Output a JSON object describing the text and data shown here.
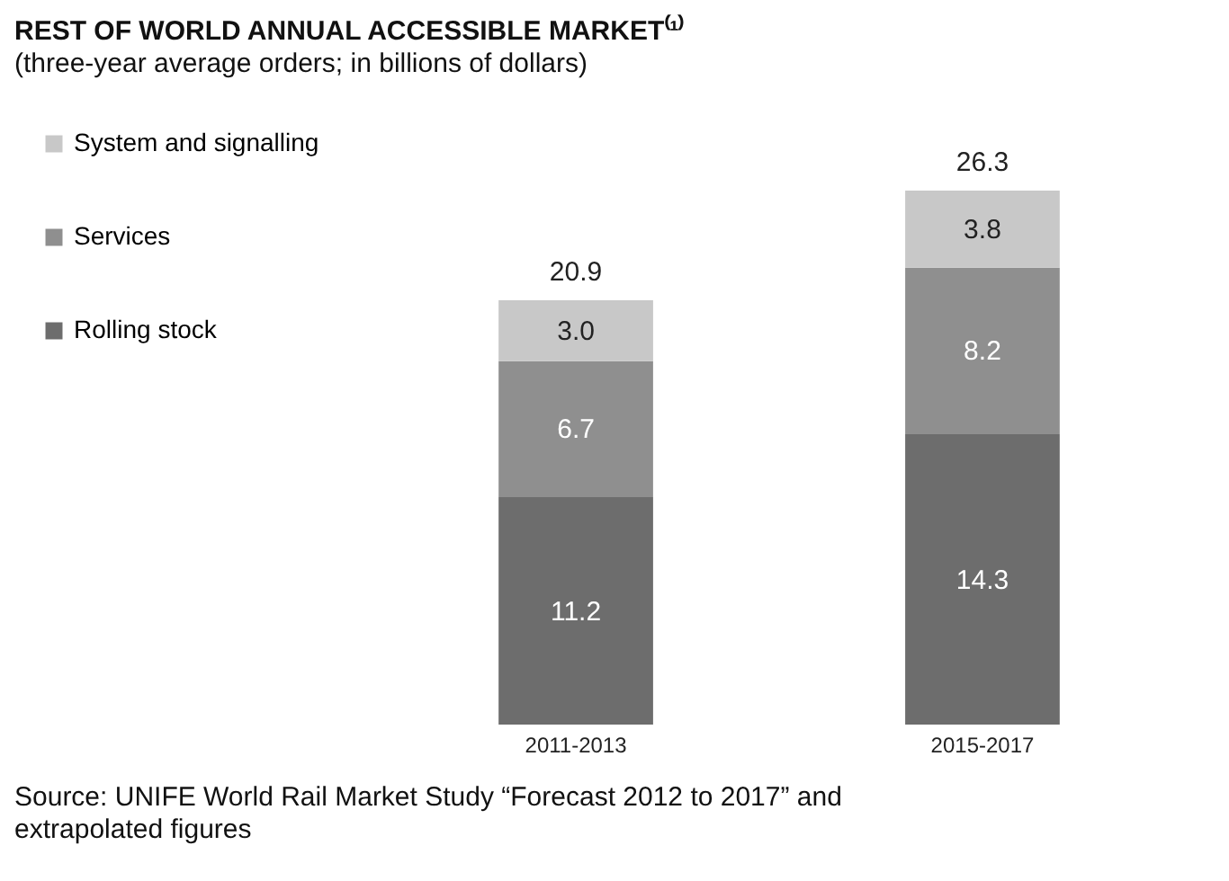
{
  "chart_data": {
    "type": "bar",
    "title": "REST OF WORLD ANNUAL ACCESSIBLE MARKET⁽¹⁾",
    "subtitle": "(three-year average orders; in billions of dollars)",
    "categories": [
      "2011-2013",
      "2015-2017"
    ],
    "stacked": true,
    "totals": [
      "20.9",
      "26.3"
    ],
    "legend": "left",
    "grid": false,
    "series": [
      {
        "name": "Rolling stock",
        "color": "#6d6d6d",
        "values": [
          11.2,
          14.3
        ],
        "value_labels": [
          "11.2",
          "14.3"
        ]
      },
      {
        "name": "Services",
        "color": "#8f8f8f",
        "values": [
          6.7,
          8.2
        ],
        "value_labels": [
          "6.7",
          "8.2"
        ]
      },
      {
        "name": "System and signalling",
        "color": "#c8c8c8",
        "values": [
          3.0,
          3.8
        ],
        "value_labels": [
          "3.0",
          "3.8"
        ]
      }
    ],
    "annotations": [
      "Source: UNIFE World Rail Market Study “Forecast 2012 to 2017” and extrapolated figures"
    ]
  }
}
